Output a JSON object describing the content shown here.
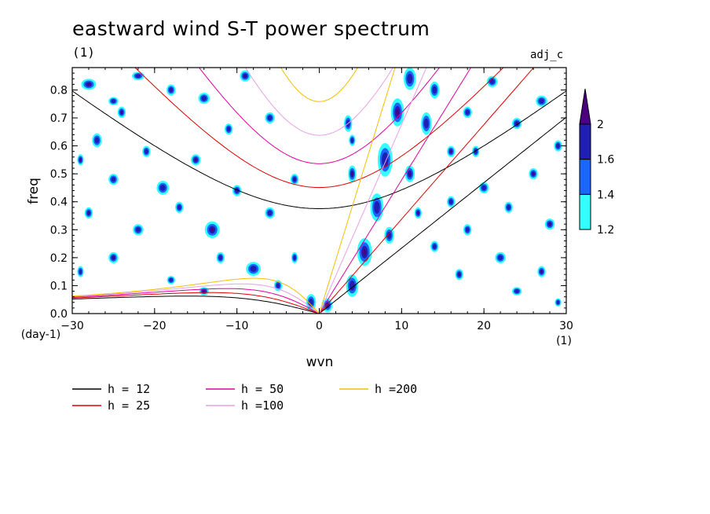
{
  "chart_data": {
    "type": "heatmap",
    "title": "eastward wind S-T power spectrum",
    "subtitle_left": "(1)",
    "tag_right": "adj_c",
    "xlabel": "wvn",
    "ylabel": "freq",
    "x_unit": "(1)",
    "y_unit": "(day-1)",
    "xlim": [
      -30,
      30
    ],
    "ylim": [
      0.0,
      0.88
    ],
    "x_ticks": [
      -30,
      -20,
      -10,
      0,
      10,
      20,
      30
    ],
    "x_tick_labels": [
      "-30",
      "-20",
      "-10",
      "0",
      "10",
      "20",
      "30"
    ],
    "y_ticks": [
      0.0,
      0.1,
      0.2,
      0.3,
      0.4,
      0.5,
      0.6,
      0.7,
      0.8
    ],
    "y_tick_labels": [
      "0.0",
      "0.1",
      "0.2",
      "0.3",
      "0.4",
      "0.5",
      "0.6",
      "0.7",
      "0.8"
    ],
    "shading_levels": [
      1.2,
      1.4,
      1.6,
      2
    ],
    "colorbar_labels": [
      "1.2",
      "1.4",
      "1.6",
      "2"
    ],
    "shading_colors": [
      "#33ffff",
      "#1a66ff",
      "#1f1fb3",
      "#4b0082"
    ],
    "blobs": [
      {
        "x": -28,
        "y": 0.82,
        "a": 1.8,
        "b": 0.02
      },
      {
        "x": -25,
        "y": 0.76,
        "a": 1.2,
        "b": 0.015
      },
      {
        "x": -22,
        "y": 0.85,
        "a": 1.5,
        "b": 0.015
      },
      {
        "x": -24,
        "y": 0.72,
        "a": 1.0,
        "b": 0.02
      },
      {
        "x": -27,
        "y": 0.62,
        "a": 1.2,
        "b": 0.025
      },
      {
        "x": -21,
        "y": 0.58,
        "a": 1.0,
        "b": 0.02
      },
      {
        "x": -29,
        "y": 0.55,
        "a": 0.8,
        "b": 0.02
      },
      {
        "x": -18,
        "y": 0.8,
        "a": 1.1,
        "b": 0.02
      },
      {
        "x": -14,
        "y": 0.77,
        "a": 1.4,
        "b": 0.02
      },
      {
        "x": -9,
        "y": 0.85,
        "a": 1.3,
        "b": 0.02
      },
      {
        "x": -6,
        "y": 0.7,
        "a": 1.2,
        "b": 0.02
      },
      {
        "x": -11,
        "y": 0.66,
        "a": 1.0,
        "b": 0.02
      },
      {
        "x": -15,
        "y": 0.55,
        "a": 1.2,
        "b": 0.02
      },
      {
        "x": -19,
        "y": 0.45,
        "a": 1.5,
        "b": 0.025
      },
      {
        "x": -25,
        "y": 0.48,
        "a": 1.2,
        "b": 0.02
      },
      {
        "x": -28,
        "y": 0.36,
        "a": 1.0,
        "b": 0.02
      },
      {
        "x": -22,
        "y": 0.3,
        "a": 1.3,
        "b": 0.02
      },
      {
        "x": -17,
        "y": 0.38,
        "a": 1.0,
        "b": 0.02
      },
      {
        "x": -13,
        "y": 0.3,
        "a": 1.8,
        "b": 0.03
      },
      {
        "x": -10,
        "y": 0.44,
        "a": 1.1,
        "b": 0.02
      },
      {
        "x": -6,
        "y": 0.36,
        "a": 1.2,
        "b": 0.02
      },
      {
        "x": -3,
        "y": 0.48,
        "a": 1.0,
        "b": 0.02
      },
      {
        "x": -8,
        "y": 0.16,
        "a": 1.8,
        "b": 0.025
      },
      {
        "x": -12,
        "y": 0.2,
        "a": 1.0,
        "b": 0.02
      },
      {
        "x": -25,
        "y": 0.2,
        "a": 1.2,
        "b": 0.02
      },
      {
        "x": -29,
        "y": 0.15,
        "a": 0.8,
        "b": 0.02
      },
      {
        "x": -18,
        "y": 0.12,
        "a": 1.0,
        "b": 0.015
      },
      {
        "x": -14,
        "y": 0.08,
        "a": 1.2,
        "b": 0.015
      },
      {
        "x": -5,
        "y": 0.1,
        "a": 1.0,
        "b": 0.02
      },
      {
        "x": -1,
        "y": 0.04,
        "a": 1.2,
        "b": 0.03
      },
      {
        "x": 1,
        "y": 0.03,
        "a": 1.2,
        "b": 0.025
      },
      {
        "x": -3,
        "y": 0.2,
        "a": 0.8,
        "b": 0.02
      },
      {
        "x": 4,
        "y": 0.1,
        "a": 1.5,
        "b": 0.04
      },
      {
        "x": 5.5,
        "y": 0.22,
        "a": 1.8,
        "b": 0.05
      },
      {
        "x": 7,
        "y": 0.38,
        "a": 1.6,
        "b": 0.05
      },
      {
        "x": 8,
        "y": 0.55,
        "a": 1.8,
        "b": 0.06
      },
      {
        "x": 9.5,
        "y": 0.72,
        "a": 1.6,
        "b": 0.05
      },
      {
        "x": 11,
        "y": 0.84,
        "a": 1.5,
        "b": 0.04
      },
      {
        "x": 8.5,
        "y": 0.28,
        "a": 1.2,
        "b": 0.03
      },
      {
        "x": 11,
        "y": 0.5,
        "a": 1.2,
        "b": 0.03
      },
      {
        "x": 13,
        "y": 0.68,
        "a": 1.3,
        "b": 0.04
      },
      {
        "x": 14,
        "y": 0.8,
        "a": 1.2,
        "b": 0.03
      },
      {
        "x": 4,
        "y": 0.5,
        "a": 1.0,
        "b": 0.03
      },
      {
        "x": 3.5,
        "y": 0.68,
        "a": 1.0,
        "b": 0.03
      },
      {
        "x": 4,
        "y": 0.62,
        "a": 0.8,
        "b": 0.02
      },
      {
        "x": 16,
        "y": 0.58,
        "a": 1.0,
        "b": 0.02
      },
      {
        "x": 18,
        "y": 0.72,
        "a": 1.1,
        "b": 0.02
      },
      {
        "x": 21,
        "y": 0.83,
        "a": 1.3,
        "b": 0.02
      },
      {
        "x": 24,
        "y": 0.68,
        "a": 1.2,
        "b": 0.02
      },
      {
        "x": 27,
        "y": 0.76,
        "a": 1.4,
        "b": 0.02
      },
      {
        "x": 29,
        "y": 0.6,
        "a": 1.0,
        "b": 0.02
      },
      {
        "x": 26,
        "y": 0.5,
        "a": 1.1,
        "b": 0.02
      },
      {
        "x": 20,
        "y": 0.45,
        "a": 1.2,
        "b": 0.02
      },
      {
        "x": 23,
        "y": 0.38,
        "a": 1.0,
        "b": 0.02
      },
      {
        "x": 28,
        "y": 0.32,
        "a": 1.2,
        "b": 0.02
      },
      {
        "x": 18,
        "y": 0.3,
        "a": 1.0,
        "b": 0.02
      },
      {
        "x": 22,
        "y": 0.2,
        "a": 1.3,
        "b": 0.02
      },
      {
        "x": 27,
        "y": 0.15,
        "a": 1.0,
        "b": 0.02
      },
      {
        "x": 24,
        "y": 0.08,
        "a": 1.2,
        "b": 0.015
      },
      {
        "x": 29,
        "y": 0.04,
        "a": 0.8,
        "b": 0.015
      },
      {
        "x": 17,
        "y": 0.14,
        "a": 1.0,
        "b": 0.02
      },
      {
        "x": 14,
        "y": 0.24,
        "a": 1.0,
        "b": 0.02
      },
      {
        "x": 16,
        "y": 0.4,
        "a": 1.0,
        "b": 0.02
      },
      {
        "x": 12,
        "y": 0.36,
        "a": 0.9,
        "b": 0.02
      },
      {
        "x": 19,
        "y": 0.58,
        "a": 0.9,
        "b": 0.02
      }
    ],
    "curves": {
      "he_values": [
        12,
        25,
        50,
        100,
        200
      ],
      "series": [
        {
          "name": "h = 12",
          "he": 12,
          "color": "#000000"
        },
        {
          "name": "h = 25",
          "he": 25,
          "color": "#e00000"
        },
        {
          "name": "h = 50",
          "he": 50,
          "color": "#e000a0"
        },
        {
          "name": "h =100",
          "he": 100,
          "color": "#e6a0e6"
        },
        {
          "name": "h =200",
          "he": 200,
          "color": "#f0c000"
        }
      ]
    }
  }
}
